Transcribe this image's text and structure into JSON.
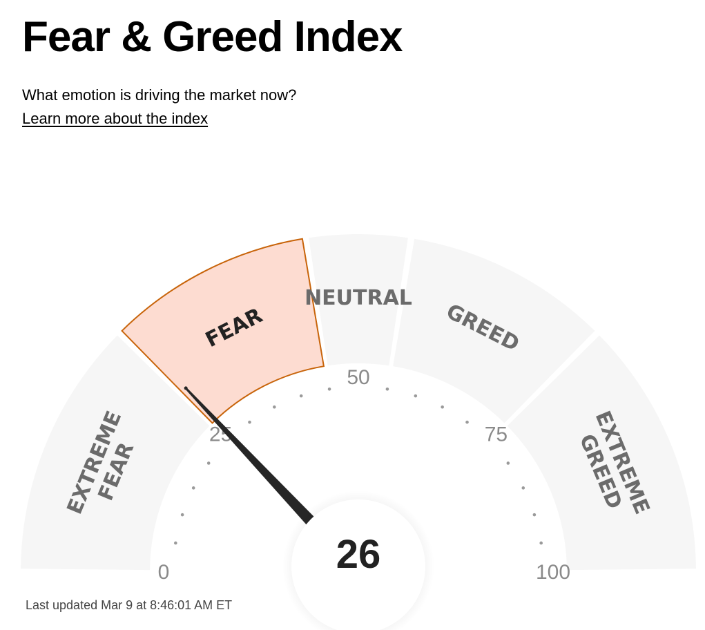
{
  "header": {
    "title": "Fear & Greed Index",
    "subtitle": "What emotion is driving the market now?",
    "learn_more": "Learn more about the index"
  },
  "gauge": {
    "value": 26,
    "value_text": "26",
    "min": 0,
    "max": 100,
    "active_zone": "fear",
    "zones": [
      {
        "id": "extreme-fear",
        "lines": [
          "EXTREME",
          "FEAR"
        ],
        "from": 0,
        "to": 25
      },
      {
        "id": "fear",
        "lines": [
          "FEAR"
        ],
        "from": 25,
        "to": 45
      },
      {
        "id": "neutral",
        "lines": [
          "NEUTRAL"
        ],
        "from": 45,
        "to": 55
      },
      {
        "id": "greed",
        "lines": [
          "GREED"
        ],
        "from": 55,
        "to": 75
      },
      {
        "id": "extreme-greed",
        "lines": [
          "EXTREME",
          "GREED"
        ],
        "from": 75,
        "to": 100
      }
    ],
    "tick_labels": [
      {
        "value": 0,
        "text": "0"
      },
      {
        "value": 25,
        "text": "25"
      },
      {
        "value": 50,
        "text": "50"
      },
      {
        "value": 75,
        "text": "75"
      },
      {
        "value": 100,
        "text": "100"
      }
    ],
    "colors": {
      "zone_fill": "#f6f6f6",
      "active_fill": "#fddcd1",
      "active_stroke": "#c8640a",
      "needle": "#262626",
      "dots": "#9a9a9a"
    }
  },
  "footer": {
    "last_updated": "Last updated Mar 9 at 8:46:01 AM ET"
  }
}
